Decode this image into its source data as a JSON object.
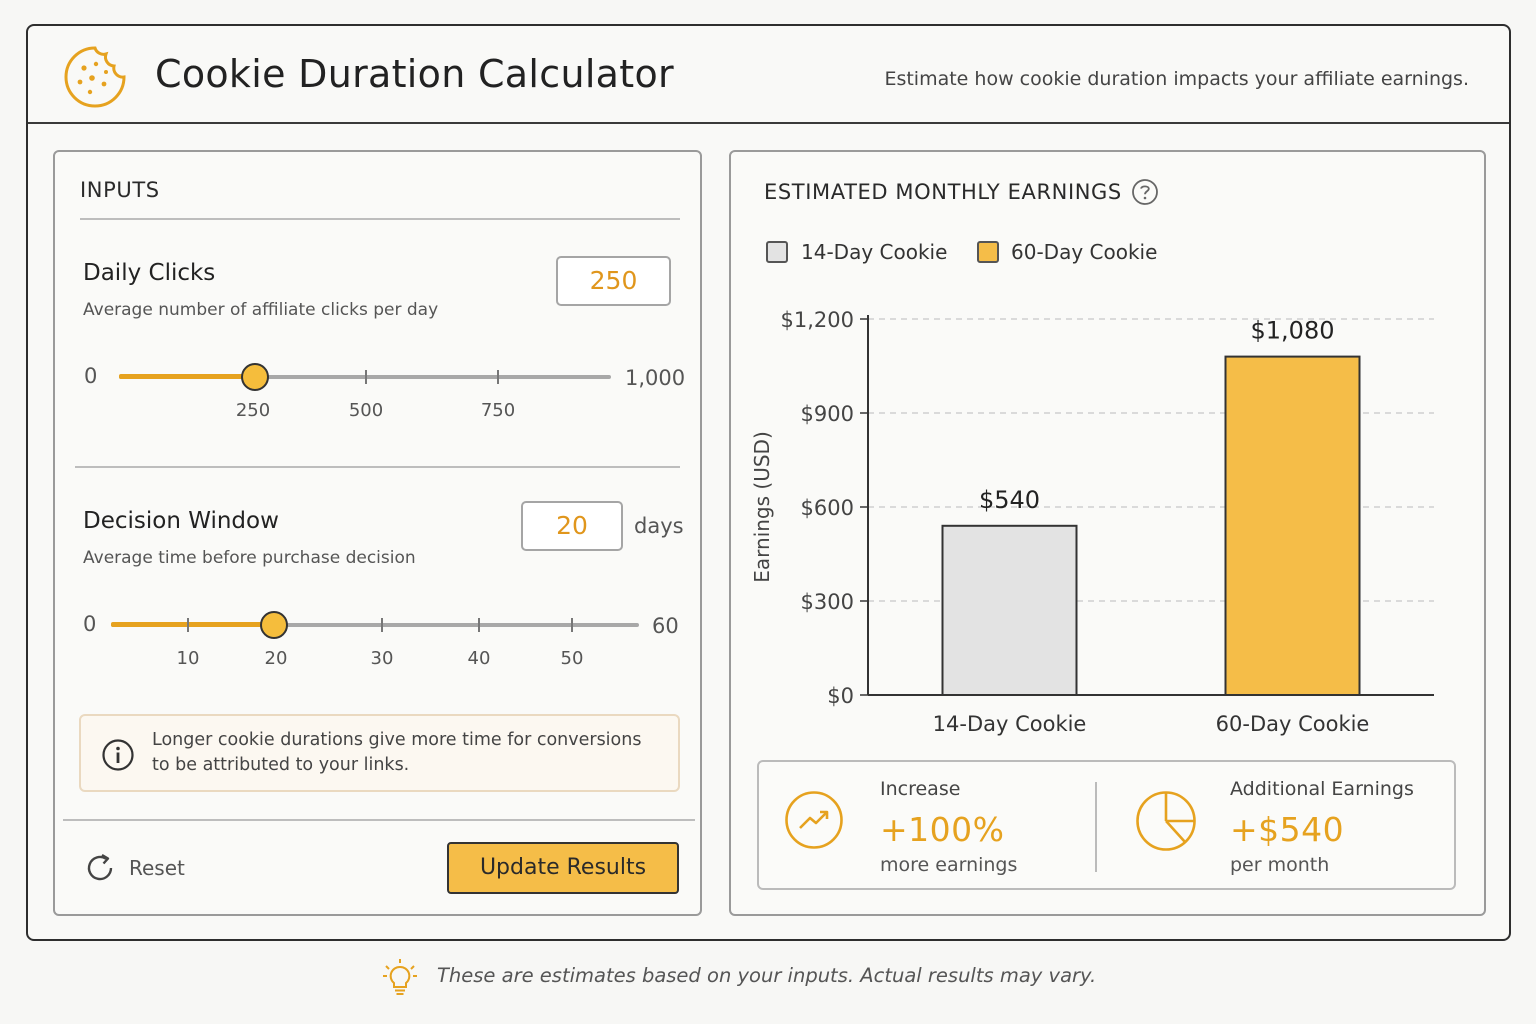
{
  "header": {
    "title": "Cookie Duration Calculator",
    "subtitle": "Estimate how cookie duration impacts your affiliate earnings."
  },
  "inputs": {
    "section_title": "INPUTS",
    "daily_clicks": {
      "label": "Daily Clicks",
      "description": "Average number of affiliate clicks per day",
      "value": "250",
      "slider_min": "0",
      "slider_max": "1,000",
      "slider_value": 250,
      "slider_range": [
        0,
        1000
      ],
      "ticks": [
        "250",
        "500",
        "750"
      ]
    },
    "decision_window": {
      "label": "Decision Window",
      "description": "Average time before purchase decision",
      "value": "20",
      "unit": "days",
      "slider_min": "0",
      "slider_max": "60",
      "slider_value": 20,
      "slider_range": [
        0,
        60
      ],
      "ticks": [
        "10",
        "20",
        "30",
        "40",
        "50"
      ]
    },
    "info_text": "Longer cookie durations give more time for conversions to be attributed to your links.",
    "reset_label": "Reset",
    "update_label": "Update Results"
  },
  "results": {
    "section_title": "ESTIMATED MONTHLY EARNINGS",
    "legend": [
      {
        "label": "14-Day Cookie",
        "color": "#e3e3e3"
      },
      {
        "label": "60-Day Cookie",
        "color": "#f5bd48"
      }
    ],
    "stats": {
      "increase_label": "Increase",
      "increase_value": "+100%",
      "increase_sub": "more earnings",
      "additional_label": "Additional Earnings",
      "additional_value": "+$540",
      "additional_sub": "per month"
    }
  },
  "chart_data": {
    "type": "bar",
    "categories": [
      "14-Day Cookie",
      "60-Day Cookie"
    ],
    "values": [
      540,
      1080
    ],
    "value_labels": [
      "$540",
      "$1,080"
    ],
    "colors": [
      "#e3e3e3",
      "#f5bd48"
    ],
    "ylabel": "Earnings (USD)",
    "ylim": [
      0,
      1200
    ],
    "yticks": [
      0,
      300,
      600,
      900,
      1200
    ],
    "ytick_labels": [
      "$0",
      "$300",
      "$600",
      "$900",
      "$1,200"
    ],
    "grid": true
  },
  "footer": {
    "note": "These are estimates based on your inputs. Actual results may vary."
  },
  "colors": {
    "accent": "#e6a21f",
    "button": "#f5bd48"
  }
}
